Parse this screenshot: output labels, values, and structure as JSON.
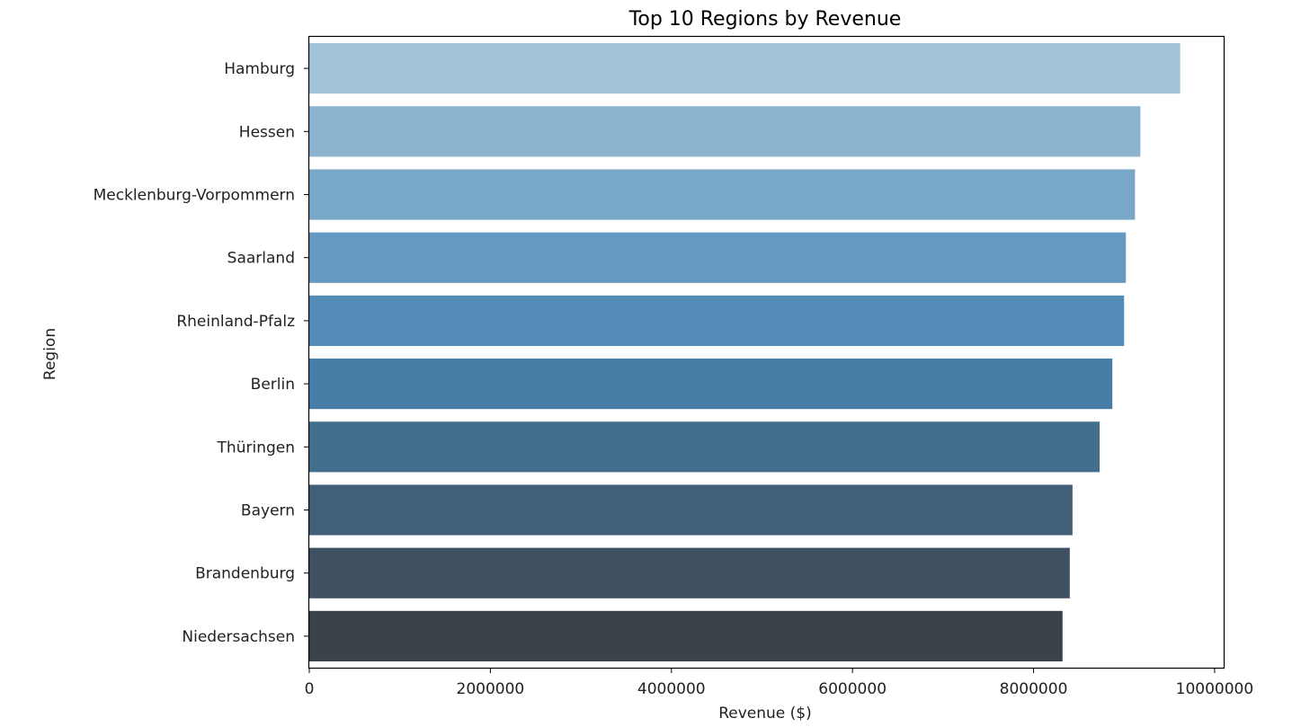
{
  "chart_data": {
    "type": "bar",
    "orientation": "horizontal",
    "title": "Top 10 Regions by Revenue",
    "xlabel": "Revenue ($)",
    "ylabel": "Region",
    "xlim": [
      0,
      10100000
    ],
    "x_ticks": [
      0,
      2000000,
      4000000,
      6000000,
      8000000,
      10000000
    ],
    "x_tick_labels": [
      "0",
      "2000000",
      "4000000",
      "6000000",
      "8000000",
      "10000000"
    ],
    "grid": false,
    "legend": "none",
    "categories": [
      "Hamburg",
      "Hessen",
      "Mecklenburg-Vorpommern",
      "Saarland",
      "Rheinland-Pfalz",
      "Berlin",
      "Thüringen",
      "Bayern",
      "Brandenburg",
      "Niedersachsen"
    ],
    "values": [
      9620000,
      9180000,
      9120000,
      9020000,
      9000000,
      8870000,
      8730000,
      8430000,
      8400000,
      8320000
    ],
    "colors": [
      "#a1c3d8",
      "#8cb3cf",
      "#79a7c8",
      "#6699c1",
      "#538bb7",
      "#467ea7",
      "#436f8d",
      "#415f78",
      "#3e5062",
      "#394349"
    ]
  }
}
